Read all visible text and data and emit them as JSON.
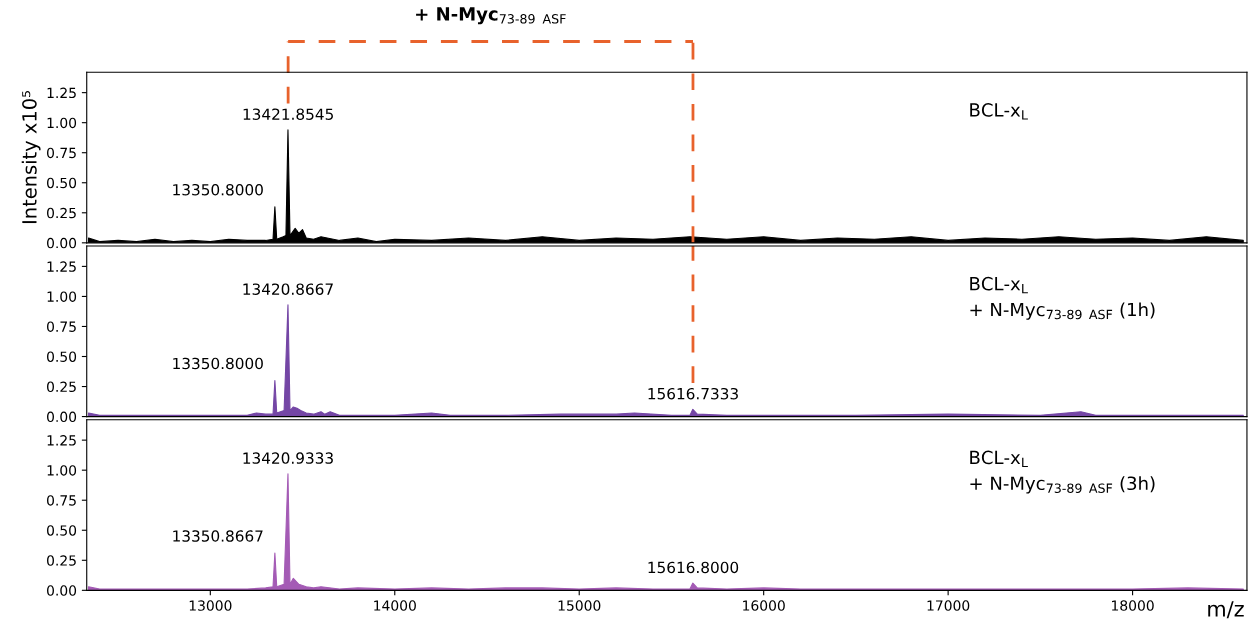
{
  "chart_data": [
    {
      "type": "area",
      "title": "+ N-Myc$_{73-89 ASF}$",
      "ylabel": "Intensity x10⁵",
      "xlim": [
        12330,
        18620
      ],
      "ylim": [
        0,
        1.42
      ],
      "tick_labels": "y",
      "yticks": [
        {
          "value": 0,
          "label": "0.00"
        },
        {
          "value": 0.25,
          "label": "0.25"
        },
        {
          "value": 0.5,
          "label": "0.50"
        },
        {
          "value": 0.75,
          "label": "0.75"
        },
        {
          "value": 1.0,
          "label": "1.00"
        },
        {
          "value": 1.25,
          "label": "1.25"
        }
      ],
      "series": [
        {
          "color": "#000000",
          "x": [
            12340,
            12400,
            12500,
            12600,
            12700,
            12800,
            12900,
            13000,
            13100,
            13200,
            13300,
            13340,
            13350,
            13360,
            13395,
            13410,
            13421,
            13432,
            13460,
            13480,
            13500,
            13520,
            13560,
            13600,
            13700,
            13800,
            13900,
            14000,
            14200,
            14400,
            14600,
            14800,
            15000,
            15200,
            15400,
            15600,
            15800,
            16000,
            16200,
            16400,
            16600,
            16800,
            17000,
            17200,
            17400,
            17600,
            17800,
            18000,
            18200,
            18400,
            18600
          ],
          "values": [
            0.04,
            0.01,
            0.02,
            0.01,
            0.03,
            0.01,
            0.02,
            0.01,
            0.03,
            0.02,
            0.02,
            0.03,
            0.3,
            0.03,
            0.05,
            0.06,
            0.94,
            0.06,
            0.12,
            0.08,
            0.11,
            0.04,
            0.03,
            0.05,
            0.02,
            0.04,
            0.01,
            0.03,
            0.02,
            0.04,
            0.02,
            0.05,
            0.02,
            0.04,
            0.03,
            0.05,
            0.03,
            0.05,
            0.02,
            0.04,
            0.03,
            0.05,
            0.02,
            0.04,
            0.03,
            0.05,
            0.03,
            0.04,
            0.02,
            0.05,
            0.02
          ]
        }
      ],
      "annotations": [
        {
          "text": "13421.8545",
          "x": 13421.8545,
          "y": 0.94
        },
        {
          "text": "13350.8000",
          "x": 13350.8,
          "y": 0.3
        },
        "BCL-x$_{L}$"
      ],
      "ref_lines": [
        {
          "axis": "x",
          "value": 13421.8545,
          "color": "#e8622c",
          "line_style": "dashed"
        },
        {
          "axis": "x",
          "value": 15616.7333,
          "color": "#e8622c",
          "line_style": "dashed"
        }
      ]
    },
    {
      "type": "area",
      "xlim": [
        12330,
        18620
      ],
      "ylim": [
        0,
        1.42
      ],
      "tick_labels": "y",
      "yticks": [
        {
          "value": 0,
          "label": "0.00"
        },
        {
          "value": 0.25,
          "label": "0.25"
        },
        {
          "value": 0.5,
          "label": "0.50"
        },
        {
          "value": 0.75,
          "label": "0.75"
        },
        {
          "value": 1.0,
          "label": "1.00"
        },
        {
          "value": 1.25,
          "label": "1.25"
        }
      ],
      "series": [
        {
          "color": "#7446a5",
          "x": [
            12340,
            12400,
            12600,
            12800,
            13000,
            13200,
            13250,
            13300,
            13340,
            13350,
            13360,
            13400,
            13421,
            13432,
            13450,
            13470,
            13490,
            13520,
            13560,
            13600,
            13620,
            13650,
            13700,
            13800,
            14000,
            14200,
            14300,
            14600,
            14900,
            15200,
            15300,
            15500,
            15600,
            15616,
            15640,
            15800,
            16000,
            16500,
            17000,
            17500,
            17720,
            17800,
            18200,
            18600
          ],
          "values": [
            0.03,
            0.01,
            0.01,
            0.01,
            0.01,
            0.01,
            0.03,
            0.02,
            0.02,
            0.3,
            0.03,
            0.05,
            0.93,
            0.05,
            0.08,
            0.07,
            0.05,
            0.03,
            0.02,
            0.04,
            0.02,
            0.04,
            0.01,
            0.01,
            0.01,
            0.03,
            0.01,
            0.01,
            0.02,
            0.02,
            0.03,
            0.01,
            0.01,
            0.06,
            0.02,
            0.01,
            0.01,
            0.01,
            0.02,
            0.01,
            0.04,
            0.01,
            0.01,
            0.01
          ]
        }
      ],
      "annotations": [
        {
          "text": "13420.8667",
          "x": 13420.8667,
          "y": 0.93
        },
        {
          "text": "13350.8000",
          "x": 13350.8,
          "y": 0.3
        },
        {
          "text": "15616.7333",
          "x": 15616.7333,
          "y": 0.06
        },
        "BCL-x$_{L}$\n+ N-Myc$_{73-89 ASF}$ (1h)"
      ],
      "ref_lines": [
        {
          "axis": "x",
          "value": 15616.7333,
          "color": "#e8622c",
          "line_style": "dashed"
        }
      ]
    },
    {
      "type": "area",
      "xlabel": "m/z",
      "xlim": [
        12330,
        18620
      ],
      "ylim": [
        0,
        1.42
      ],
      "xticks": [
        13000,
        14000,
        15000,
        16000,
        17000,
        18000
      ],
      "yticks": [
        {
          "value": 0,
          "label": "0.00"
        },
        {
          "value": 0.25,
          "label": "0.25"
        },
        {
          "value": 0.5,
          "label": "0.50"
        },
        {
          "value": 0.75,
          "label": "0.75"
        },
        {
          "value": 1.0,
          "label": "1.00"
        },
        {
          "value": 1.25,
          "label": "1.25"
        }
      ],
      "series": [
        {
          "color": "#a45bb5",
          "x": [
            12340,
            12400,
            12600,
            12800,
            13000,
            13200,
            13300,
            13340,
            13350,
            13360,
            13400,
            13421,
            13432,
            13450,
            13480,
            13520,
            13560,
            13600,
            13700,
            13800,
            14000,
            14200,
            14400,
            14600,
            14800,
            15000,
            15200,
            15400,
            15600,
            15616,
            15640,
            15800,
            16000,
            16200,
            16400,
            16800,
            17200,
            17600,
            18000,
            18300,
            18600
          ],
          "values": [
            0.03,
            0.01,
            0.01,
            0.01,
            0.01,
            0.01,
            0.02,
            0.03,
            0.31,
            0.03,
            0.05,
            0.97,
            0.05,
            0.1,
            0.05,
            0.03,
            0.02,
            0.03,
            0.01,
            0.02,
            0.01,
            0.02,
            0.01,
            0.02,
            0.02,
            0.01,
            0.02,
            0.01,
            0.01,
            0.06,
            0.02,
            0.01,
            0.02,
            0.01,
            0.01,
            0.01,
            0.01,
            0.01,
            0.01,
            0.02,
            0.01
          ]
        }
      ],
      "annotations": [
        {
          "text": "13420.9333",
          "x": 13420.9333,
          "y": 0.97
        },
        {
          "text": "13350.8667",
          "x": 13350.8667,
          "y": 0.31
        },
        {
          "text": "15616.8000",
          "x": 15616.8,
          "y": 0.06
        },
        "BCL-x$_{L}$\n+ N-Myc$_{73-89 ASF}$ (3h)"
      ]
    }
  ]
}
